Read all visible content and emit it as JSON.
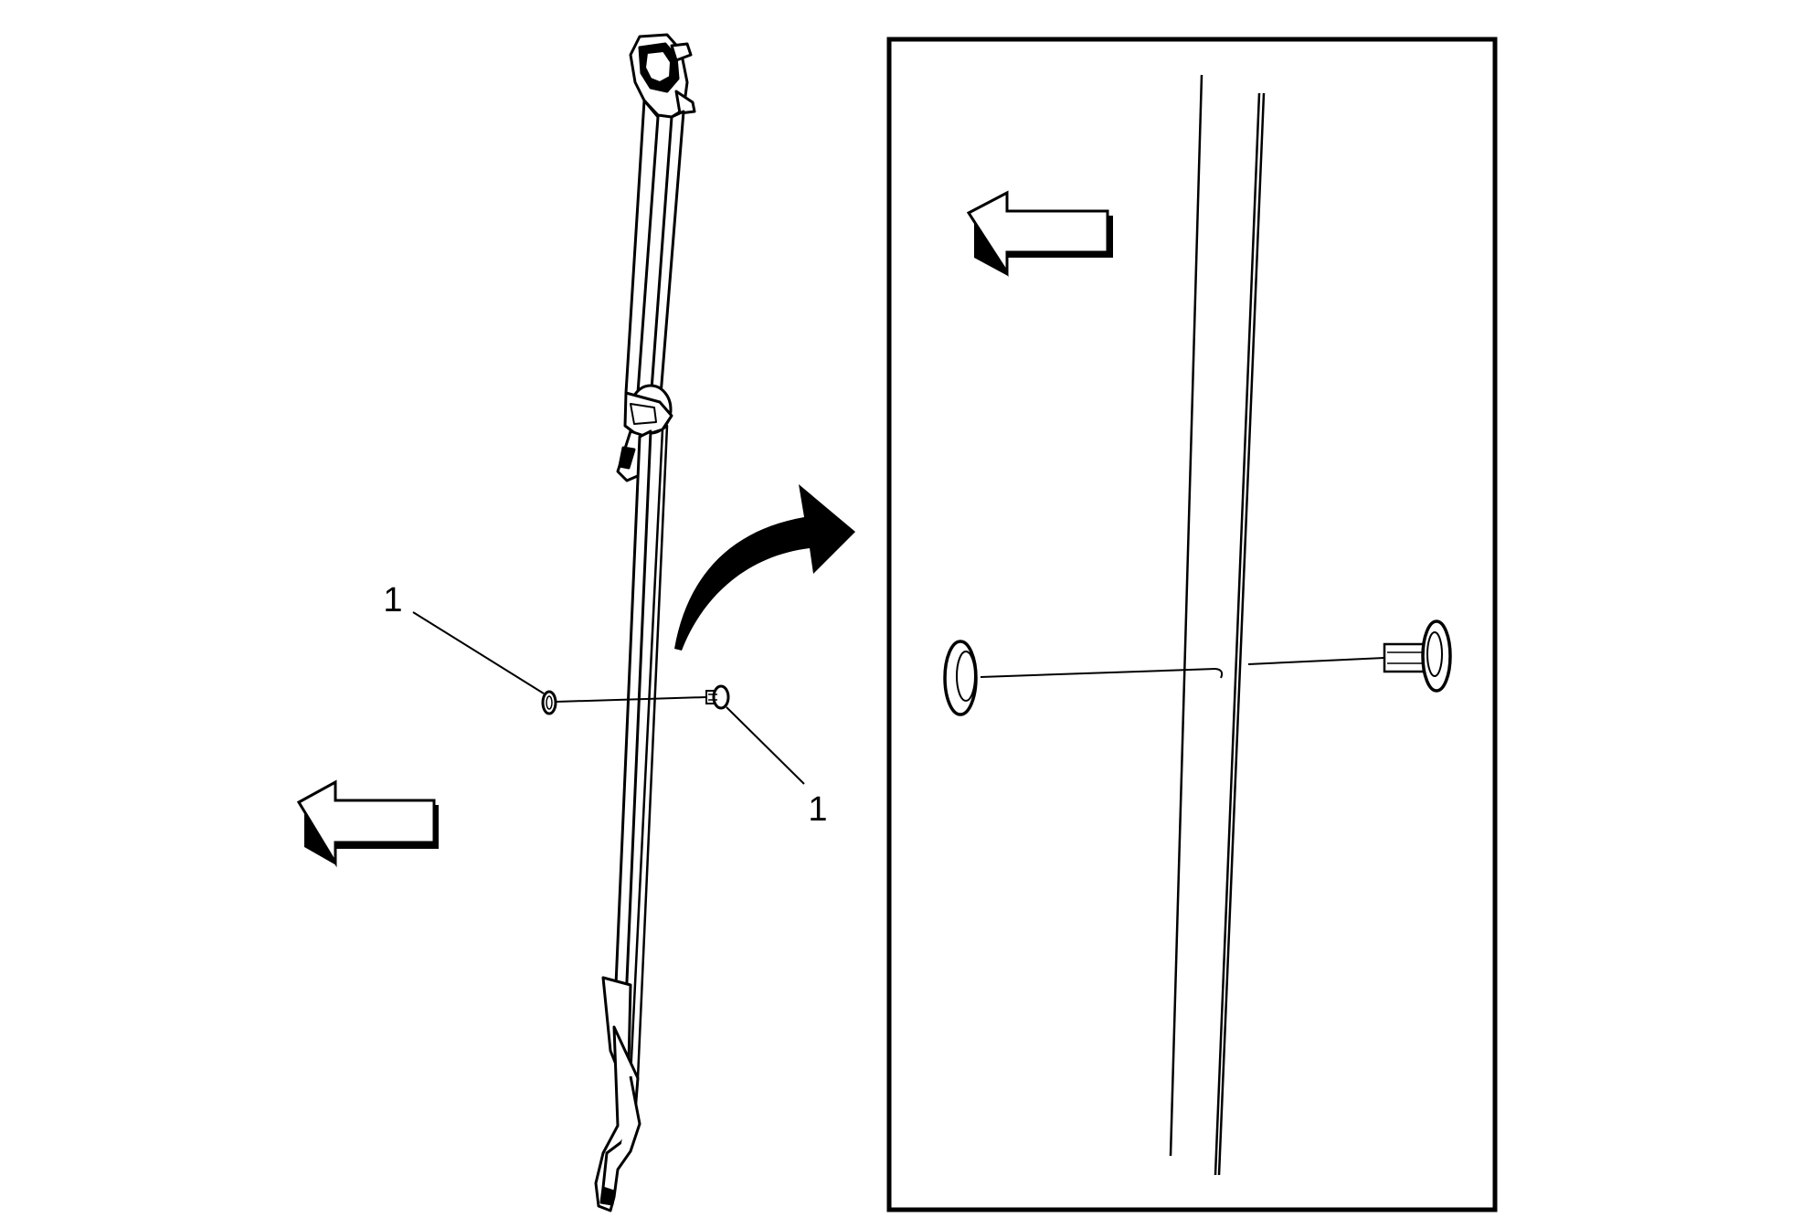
{
  "diagram": {
    "callouts": [
      {
        "id": "left-fastener",
        "label": "1"
      },
      {
        "id": "right-fastener",
        "label": "1"
      }
    ],
    "direction_arrows": [
      {
        "id": "main-view-forward-arrow",
        "direction": "left"
      },
      {
        "id": "detail-view-forward-arrow",
        "direction": "left"
      }
    ],
    "colors": {
      "ink": "#000000",
      "paper": "#ffffff",
      "shadow": "#000000"
    }
  }
}
